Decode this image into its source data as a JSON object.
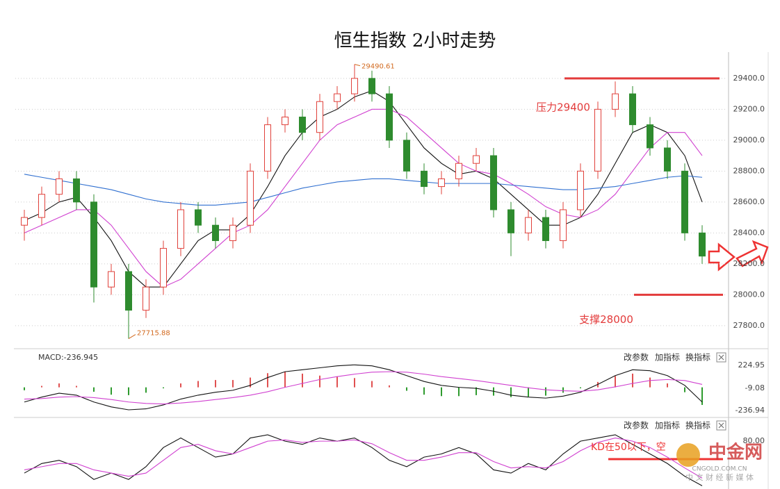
{
  "title": "恒生指数 2小时走势",
  "watermark": {
    "brand": "中金网",
    "site": "CNGOLD.COM.CN",
    "slogan": "中 文 财 经 新 媒 体"
  },
  "chart_data": [
    {
      "type": "candlestick",
      "ylim": [
        27660,
        29570
      ],
      "yticks": [
        {
          "value": 27800,
          "label": "27800.0"
        },
        {
          "value": 28000,
          "label": "28000.0"
        },
        {
          "value": 28200,
          "label": "28200.0"
        },
        {
          "value": 28400,
          "label": "28400.0"
        },
        {
          "value": 28600,
          "label": "28600.0"
        },
        {
          "value": 28800,
          "label": "28800.0"
        },
        {
          "value": 29000,
          "label": "29000.0"
        },
        {
          "value": 29200,
          "label": "29200.0"
        },
        {
          "value": 29400,
          "label": "29400.0"
        }
      ],
      "grid": true,
      "up_color": "#e0403a",
      "down_color": "#2e8b2e",
      "candles": {
        "open": [
          28450,
          28500,
          28650,
          28750,
          28600,
          28050,
          28150,
          27900,
          28050,
          28300,
          28550,
          28450,
          28350,
          28450,
          28800,
          29100,
          29150,
          29050,
          29250,
          29300,
          29400,
          29300,
          29000,
          28800,
          28700,
          28750,
          28850,
          28900,
          28550,
          28400,
          28500,
          28350,
          28550,
          28800,
          29200,
          29300,
          29100,
          28950,
          28800,
          28400
        ],
        "high": [
          28550,
          28700,
          28800,
          28800,
          28650,
          28200,
          28200,
          28100,
          28350,
          28600,
          28600,
          28500,
          28500,
          28850,
          29150,
          29200,
          29200,
          29300,
          29350,
          29490.61,
          29450,
          29350,
          29050,
          28850,
          28800,
          28900,
          28950,
          28950,
          28600,
          28550,
          28550,
          28600,
          28850,
          29250,
          29380,
          29350,
          29150,
          29000,
          28850,
          28450
        ],
        "low": [
          28350,
          28450,
          28600,
          28550,
          27950,
          28000,
          27715.88,
          27850,
          28000,
          28250,
          28400,
          28300,
          28300,
          28400,
          28750,
          29050,
          29000,
          29000,
          29200,
          29250,
          29250,
          28950,
          28750,
          28650,
          28650,
          28700,
          28800,
          28500,
          28250,
          28350,
          28300,
          28300,
          28500,
          28750,
          29150,
          29050,
          28900,
          28750,
          28350,
          28200
        ],
        "close": [
          28500,
          28650,
          28750,
          28600,
          28050,
          28150,
          27900,
          28050,
          28300,
          28550,
          28450,
          28350,
          28450,
          28800,
          29100,
          29150,
          29050,
          29250,
          29300,
          29400,
          29300,
          29000,
          28800,
          28700,
          28750,
          28850,
          28900,
          28550,
          28400,
          28500,
          28350,
          28550,
          28800,
          29200,
          29300,
          29100,
          28950,
          28800,
          28400,
          28250
        ]
      },
      "lines": [
        {
          "color": "#111111",
          "values": [
            28480,
            28530,
            28600,
            28630,
            28500,
            28350,
            28150,
            28050,
            28050,
            28200,
            28350,
            28420,
            28420,
            28520,
            28700,
            28900,
            29050,
            29150,
            29200,
            29280,
            29320,
            29250,
            29100,
            28950,
            28850,
            28780,
            28800,
            28750,
            28650,
            28550,
            28450,
            28450,
            28500,
            28650,
            28850,
            29050,
            29100,
            29050,
            28900,
            28600
          ]
        },
        {
          "color": "#d040d0",
          "values": [
            28400,
            28450,
            28500,
            28550,
            28550,
            28450,
            28300,
            28150,
            28050,
            28100,
            28200,
            28300,
            28400,
            28450,
            28550,
            28700,
            28850,
            29000,
            29100,
            29150,
            29200,
            29200,
            29150,
            29050,
            28950,
            28850,
            28800,
            28780,
            28720,
            28650,
            28570,
            28520,
            28500,
            28550,
            28650,
            28800,
            28950,
            29050,
            29050,
            28900
          ]
        },
        {
          "color": "#2f6fd0",
          "values": [
            28780,
            28760,
            28740,
            28720,
            28700,
            28680,
            28650,
            28620,
            28600,
            28590,
            28580,
            28580,
            28590,
            28600,
            28630,
            28660,
            28690,
            28710,
            28730,
            28740,
            28750,
            28750,
            28740,
            28730,
            28720,
            28720,
            28720,
            28720,
            28710,
            28700,
            28690,
            28680,
            28680,
            28690,
            28700,
            28720,
            28740,
            28760,
            28770,
            28760
          ]
        }
      ],
      "levels": [
        {
          "label": "压力29400",
          "value": 29400,
          "color": "#e33b3b"
        },
        {
          "label": "支撑28000",
          "value": 28000,
          "color": "#e33b3b"
        }
      ],
      "extreme_color": "#d2691e"
    },
    {
      "type": "macd",
      "label": "MACD:-236.945",
      "toolbar": [
        "改参数",
        "加指标",
        "换指标"
      ],
      "ylim": [
        -301,
        374
      ],
      "yticks": [
        224.95,
        -9.08,
        -236.94
      ],
      "pos_color": "#e05050",
      "neg_color": "#2e9b2e",
      "histogram": [
        -30,
        15,
        40,
        15,
        -45,
        -75,
        -80,
        -55,
        -10,
        40,
        65,
        75,
        75,
        100,
        145,
        160,
        140,
        120,
        110,
        95,
        65,
        20,
        -35,
        -75,
        -90,
        -90,
        -80,
        -85,
        -100,
        -95,
        -85,
        -55,
        -10,
        55,
        115,
        140,
        100,
        40,
        -50,
        -180
      ],
      "lines": [
        {
          "color": "#111111",
          "values": [
            -150,
            -100,
            -60,
            -80,
            -150,
            -200,
            -230,
            -220,
            -180,
            -120,
            -80,
            -50,
            -30,
            20,
            100,
            160,
            180,
            200,
            220,
            230,
            220,
            180,
            120,
            60,
            20,
            0,
            -10,
            -40,
            -80,
            -100,
            -110,
            -90,
            -50,
            30,
            120,
            180,
            170,
            120,
            20,
            -150
          ]
        },
        {
          "color": "#d040d0",
          "values": [
            -120,
            -115,
            -100,
            -95,
            -105,
            -125,
            -150,
            -165,
            -170,
            -160,
            -145,
            -125,
            -105,
            -80,
            -45,
            0,
            40,
            80,
            110,
            135,
            155,
            160,
            155,
            135,
            110,
            90,
            70,
            45,
            20,
            -5,
            -25,
            -35,
            -40,
            -25,
            5,
            40,
            70,
            80,
            70,
            30
          ]
        }
      ]
    },
    {
      "type": "line",
      "toolbar": [
        "改参数",
        "加指标",
        "换指标"
      ],
      "annotation": "KD在50以下，空",
      "ylim": [
        5,
        115
      ],
      "yticks": [
        {
          "value": 80,
          "label": "80.00"
        }
      ],
      "lines": [
        {
          "color": "#111111",
          "values": [
            30,
            45,
            50,
            40,
            20,
            30,
            20,
            40,
            70,
            85,
            70,
            55,
            60,
            85,
            90,
            80,
            75,
            85,
            80,
            85,
            70,
            50,
            40,
            55,
            60,
            70,
            60,
            35,
            30,
            45,
            35,
            60,
            80,
            85,
            90,
            75,
            60,
            45,
            25,
            10
          ]
        },
        {
          "color": "#d040d0",
          "values": [
            35,
            40,
            45,
            45,
            35,
            30,
            25,
            30,
            50,
            70,
            75,
            65,
            60,
            70,
            80,
            82,
            78,
            80,
            80,
            82,
            76,
            62,
            50,
            50,
            55,
            62,
            62,
            48,
            38,
            40,
            38,
            48,
            65,
            78,
            85,
            80,
            70,
            55,
            38,
            22
          ]
        }
      ]
    }
  ]
}
